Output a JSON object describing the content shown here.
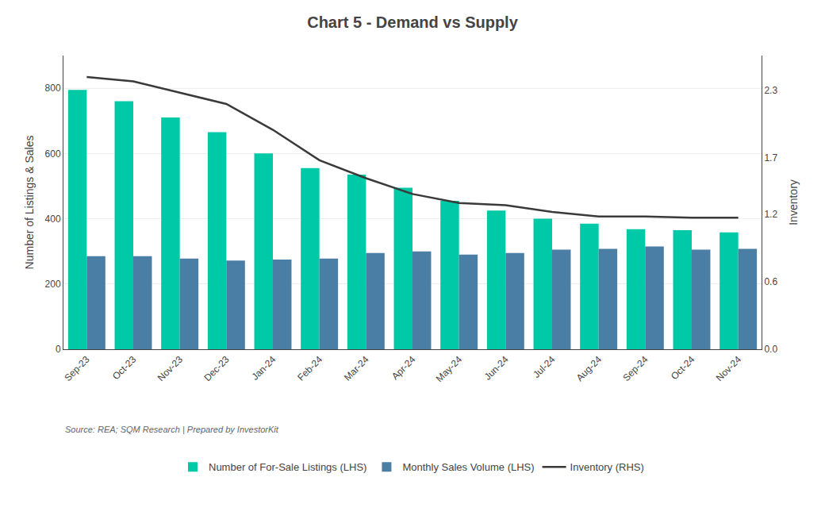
{
  "chart_data": {
    "type": "bar",
    "title": "Chart 5 - Demand vs Supply",
    "categories": [
      "Sep-23",
      "Oct-23",
      "Nov-23",
      "Dec-23",
      "Jan-24",
      "Feb-24",
      "Mar-24",
      "Apr-24",
      "May-24",
      "Jun-24",
      "Jul-24",
      "Aug-24",
      "Sep-24",
      "Oct-24",
      "Nov-24"
    ],
    "series": [
      {
        "name": "Number of For-Sale Listings (LHS)",
        "type": "bar",
        "color": "#00C9A7",
        "values": [
          795,
          760,
          710,
          665,
          600,
          555,
          535,
          495,
          455,
          425,
          400,
          385,
          368,
          365,
          358
        ]
      },
      {
        "name": "Monthly Sales Volume (LHS)",
        "type": "bar",
        "color": "#4A7EA5",
        "values": [
          285,
          285,
          278,
          272,
          275,
          278,
          295,
          300,
          290,
          295,
          305,
          308,
          315,
          305,
          308
        ]
      },
      {
        "name": "Inventory (RHS)",
        "type": "line",
        "axis": "y2",
        "color": "#3a3a3a",
        "values": [
          2.42,
          2.38,
          2.28,
          2.18,
          1.95,
          1.68,
          1.52,
          1.38,
          1.3,
          1.28,
          1.22,
          1.18,
          1.18,
          1.17,
          1.17
        ]
      }
    ],
    "ylabel": "Number of Listings & Sales",
    "y2label": "Inventory",
    "ylim": [
      0,
      900
    ],
    "yticks": [
      0,
      200,
      400,
      600,
      800
    ],
    "y2lim": [
      0,
      2.61
    ],
    "y2ticks": [
      {
        "value": 0,
        "label": "0.0"
      },
      0.6,
      1.2,
      1.7,
      2.3
    ],
    "annotations": [
      "Source: REA; SQM Research | Prepared by InvestorKit"
    ],
    "grid": true,
    "legend": "bottom"
  }
}
